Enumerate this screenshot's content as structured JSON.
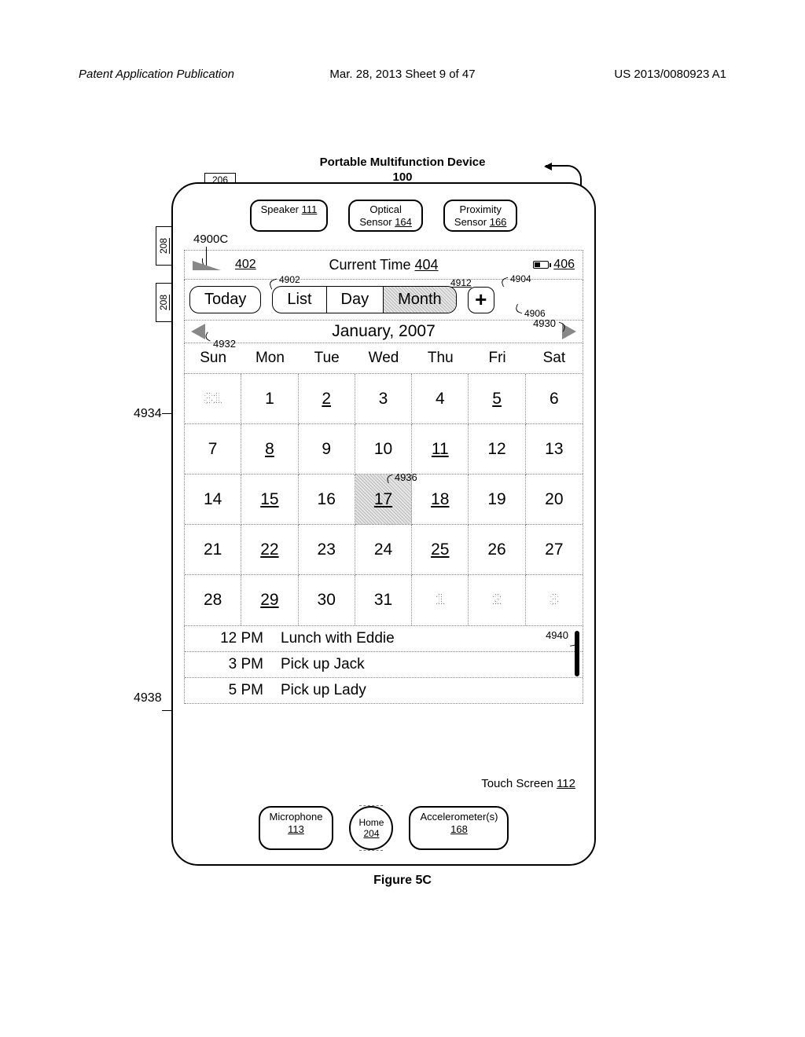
{
  "header": {
    "left": "Patent Application Publication",
    "center": "Mar. 28, 2013  Sheet 9 of 47",
    "right": "US 2013/0080923 A1"
  },
  "device_title": {
    "line1": "Portable Multifunction Device",
    "line2": "100"
  },
  "ref": {
    "r206": "206",
    "r208": "208",
    "speaker": "Speaker ",
    "speaker_num": "111",
    "optical": "Optical",
    "optical2": "Sensor ",
    "optical_num": "164",
    "prox": "Proximity",
    "prox2": "Sensor ",
    "prox_num": "166",
    "l4900C": "4900C",
    "status402": "402",
    "status_center": "Current Time ",
    "status_center_num": "404",
    "status406": "406",
    "today": "Today",
    "list": "List",
    "day": "Day",
    "month": "Month",
    "l4902": "4902",
    "l4912": "4912",
    "l4904": "4904",
    "l4906": "4906",
    "month_label": "January, 2007",
    "l4930": "4930",
    "l4932": "4932",
    "l4936": "4936",
    "ts": "Touch Screen ",
    "ts_num": "112",
    "mic": "Microphone",
    "mic_num": "113",
    "home": "Home",
    "home_num": "204",
    "acc": "Accelerometer(s)",
    "acc_num": "168",
    "fig": "Figure 5C",
    "l4934": "4934",
    "l4938": "4938",
    "l4940": "4940"
  },
  "dow": [
    "Sun",
    "Mon",
    "Tue",
    "Wed",
    "Thu",
    "Fri",
    "Sat"
  ],
  "calendar": [
    [
      {
        "n": "31",
        "dim": true
      },
      {
        "n": "1"
      },
      {
        "n": "2",
        "u": true
      },
      {
        "n": "3"
      },
      {
        "n": "4"
      },
      {
        "n": "5",
        "u": true
      },
      {
        "n": "6"
      }
    ],
    [
      {
        "n": "7"
      },
      {
        "n": "8",
        "u": true
      },
      {
        "n": "9"
      },
      {
        "n": "10"
      },
      {
        "n": "11",
        "u": true
      },
      {
        "n": "12"
      },
      {
        "n": "13"
      }
    ],
    [
      {
        "n": "14"
      },
      {
        "n": "15",
        "u": true
      },
      {
        "n": "16"
      },
      {
        "n": "17",
        "u": true,
        "sel": true,
        "tag": "4936"
      },
      {
        "n": "18",
        "u": true
      },
      {
        "n": "19"
      },
      {
        "n": "20"
      }
    ],
    [
      {
        "n": "21"
      },
      {
        "n": "22",
        "u": true
      },
      {
        "n": "23"
      },
      {
        "n": "24"
      },
      {
        "n": "25",
        "u": true
      },
      {
        "n": "26"
      },
      {
        "n": "27"
      }
    ],
    [
      {
        "n": "28"
      },
      {
        "n": "29",
        "u": true
      },
      {
        "n": "30"
      },
      {
        "n": "31"
      },
      {
        "n": "1",
        "dim": true
      },
      {
        "n": "2",
        "dim": true
      },
      {
        "n": "3",
        "dim": true
      }
    ]
  ],
  "events": [
    {
      "time": "12 PM",
      "title": "Lunch with Eddie"
    },
    {
      "time": "3 PM",
      "title": "Pick up Jack"
    },
    {
      "time": "5 PM",
      "title": "Pick up Lady"
    }
  ]
}
